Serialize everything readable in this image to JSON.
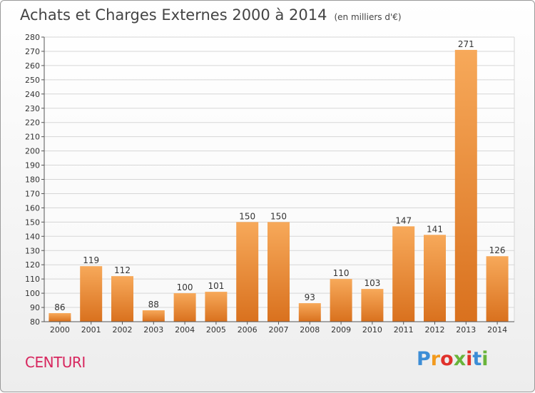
{
  "header": {
    "title": "Achats et Charges Externes 2000 à 2014",
    "subtitle": "(en milliers d'€)"
  },
  "footer": {
    "commune": "CENTURI",
    "logo": "Proxiti",
    "logo_colors": [
      "#3c8dd6",
      "#f29a1d",
      "#e0312b",
      "#69b43a",
      "#e0312b",
      "#3c8dd6",
      "#69b43a"
    ]
  },
  "colors": {
    "bar_light": "#f7a95a",
    "bar_dark": "#d9711e",
    "grid": "#d6d6d6",
    "axis": "#555555",
    "text": "#333333"
  },
  "chart_data": {
    "type": "bar",
    "categories": [
      "2000",
      "2001",
      "2002",
      "2003",
      "2004",
      "2005",
      "2006",
      "2007",
      "2008",
      "2009",
      "2010",
      "2011",
      "2012",
      "2013",
      "2014"
    ],
    "values": [
      86,
      119,
      112,
      88,
      100,
      101,
      150,
      150,
      93,
      110,
      103,
      147,
      141,
      271,
      126
    ],
    "title": "Achats et Charges Externes 2000 à 2014",
    "ylim": [
      80,
      280
    ],
    "yticks": [
      80,
      90,
      100,
      110,
      120,
      130,
      140,
      150,
      160,
      170,
      180,
      190,
      200,
      210,
      220,
      230,
      240,
      250,
      260,
      270,
      280
    ],
    "grid": true,
    "data_labels": true
  }
}
